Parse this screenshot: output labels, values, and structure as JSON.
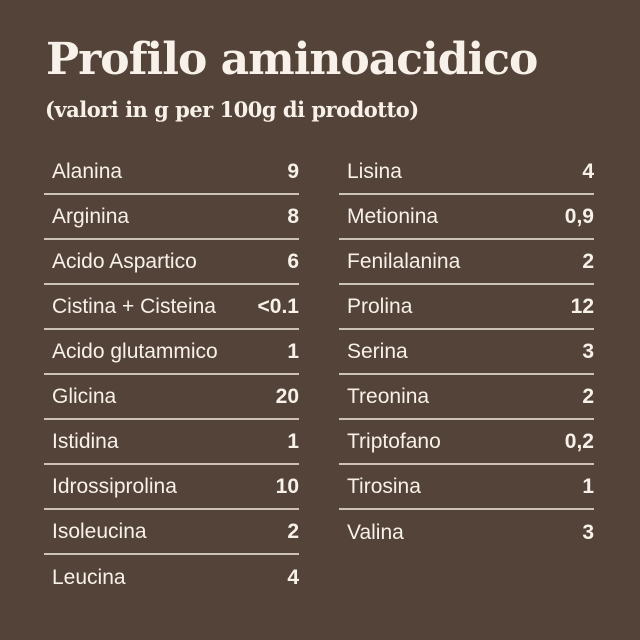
{
  "page": {
    "colors": {
      "background": "#544338",
      "text": "#f7f1e9",
      "divider": "#cdc2b7"
    }
  },
  "header": {
    "title": "Profilo aminoacidico",
    "subtitle": "(valori in g per 100g di prodotto)"
  },
  "table": {
    "columns": [
      {
        "rows": [
          {
            "name": "Alanina",
            "value": "9"
          },
          {
            "name": "Arginina",
            "value": "8"
          },
          {
            "name": "Acido Aspartico",
            "value": "6"
          },
          {
            "name": "Cistina + Cisteina",
            "value": "<0.1"
          },
          {
            "name": "Acido glutammico",
            "value": "1"
          },
          {
            "name": "Glicina",
            "value": "20"
          },
          {
            "name": "Istidina",
            "value": "1"
          },
          {
            "name": "Idrossiprolina",
            "value": "10"
          },
          {
            "name": "Isoleucina",
            "value": "2"
          },
          {
            "name": "Leucina",
            "value": "4"
          }
        ]
      },
      {
        "rows": [
          {
            "name": "Lisina",
            "value": "4"
          },
          {
            "name": "Metionina",
            "value": "0,9"
          },
          {
            "name": "Fenilalanina",
            "value": "2"
          },
          {
            "name": "Prolina",
            "value": "12"
          },
          {
            "name": "Serina",
            "value": "3"
          },
          {
            "name": "Treonina",
            "value": "2"
          },
          {
            "name": "Triptofano",
            "value": "0,2"
          },
          {
            "name": "Tirosina",
            "value": "1"
          },
          {
            "name": "Valina",
            "value": "3"
          }
        ]
      }
    ]
  }
}
